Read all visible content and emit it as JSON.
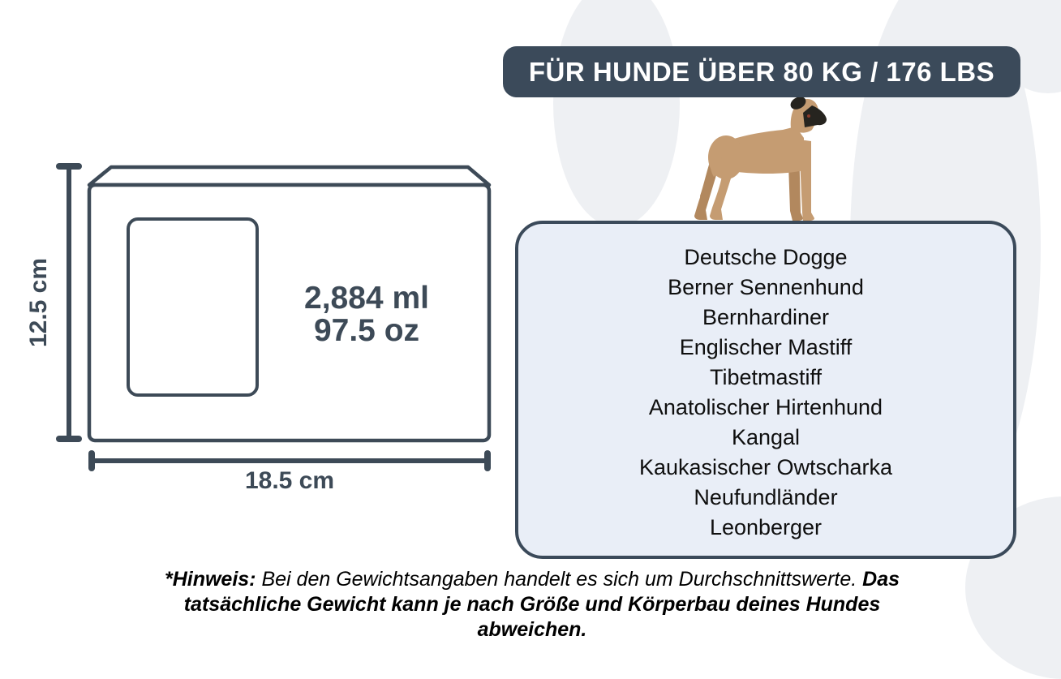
{
  "title": {
    "label": "FÜR HUNDE ÜBER 80 KG / 176 LBS"
  },
  "diagram": {
    "height_label": "12.5 cm",
    "width_label": "18.5 cm",
    "volume_ml": "2,884 ml",
    "volume_oz": "97.5 oz"
  },
  "breeds": {
    "items": [
      "Deutsche Dogge",
      "Berner Sennenhund",
      "Bernhardiner",
      "Englischer Mastiff",
      "Tibetmastiff",
      "Anatolischer Hirtenhund",
      "Kangal",
      "Kaukasischer Owtscharka",
      "Neufundländer",
      "Leonberger"
    ]
  },
  "footnote": {
    "prefix_bold": "*Hinweis:",
    "regular": " Bei den Gewichtsangaben handelt es sich um Durchschnittswerte. ",
    "suffix_bold": "Das tatsächliche Gewicht kann je nach Größe und Körperbau deines Hundes abweichen."
  },
  "icons": {
    "dog": "great-dane-illustration",
    "background": "paw-print-shapes"
  },
  "colors": {
    "slate": "#3b4a5a",
    "panel_fill": "#e9eef7",
    "paw_gray": "#eef0f3",
    "dog_tan": "#c59c72",
    "dog_shade": "#b2885e",
    "dog_dark": "#26241f",
    "text_dark": "#0f0f0f"
  }
}
